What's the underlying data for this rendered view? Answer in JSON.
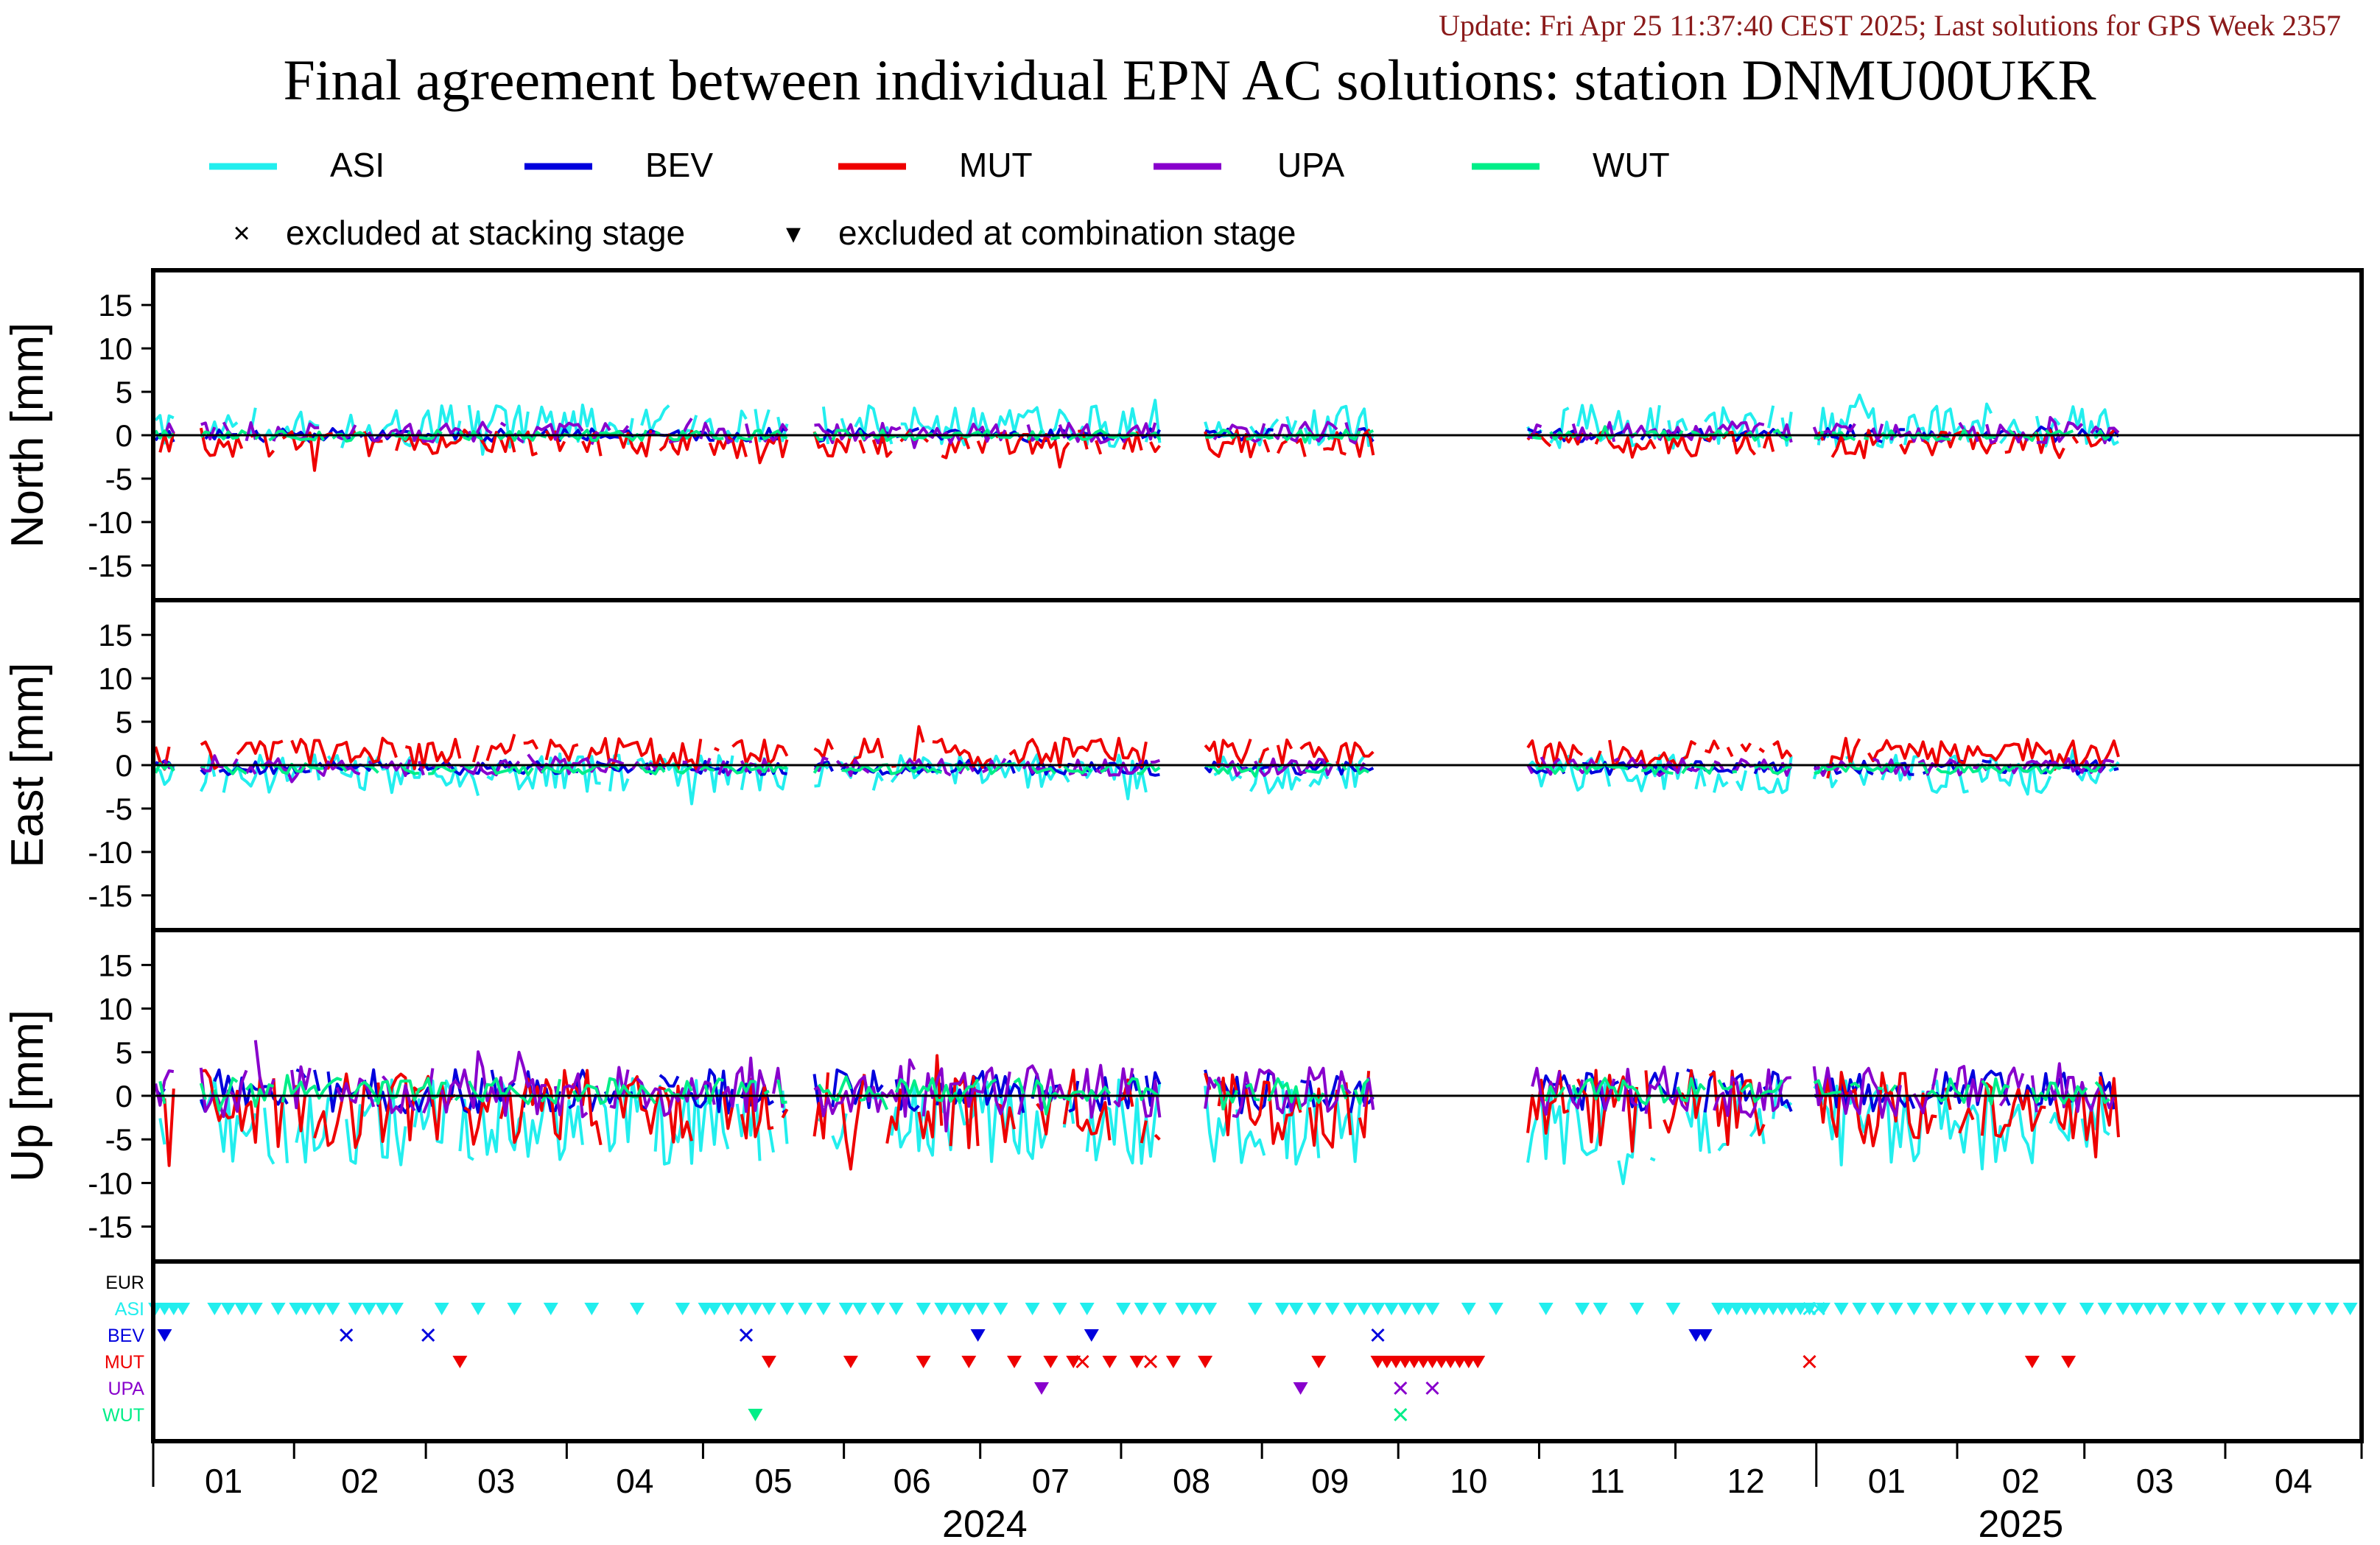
{
  "update_text": "Update: Fri Apr 25 11:37:40 CEST 2025; Last solutions for GPS Week 2357",
  "title": "Final agreement between individual EPN AC solutions: station DNMU00UKR",
  "legend": {
    "series": [
      {
        "name": "ASI",
        "color": "#22eeee"
      },
      {
        "name": "BEV",
        "color": "#0000dd"
      },
      {
        "name": "MUT",
        "color": "#ee0000"
      },
      {
        "name": "UPA",
        "color": "#8800cc"
      },
      {
        "name": "WUT",
        "color": "#00ee88"
      }
    ],
    "symbols": [
      {
        "symbol": "×",
        "label": "excluded at stacking stage"
      },
      {
        "symbol": "▾",
        "label": "excluded at combination stage"
      }
    ]
  },
  "chart_data": {
    "type": "line",
    "x_range": [
      "2024-01-01",
      "2025-04-30"
    ],
    "x_months": [
      "01",
      "02",
      "03",
      "04",
      "05",
      "06",
      "07",
      "08",
      "09",
      "10",
      "11",
      "12",
      "01",
      "02",
      "03",
      "04"
    ],
    "x_years": [
      "2024",
      "2025"
    ],
    "panels": [
      {
        "ylabel": "North [mm]",
        "ylim": [
          -19,
          19
        ],
        "yticks": [
          15,
          10,
          5,
          0,
          -5,
          -10,
          -15
        ],
        "series": [
          {
            "name": "ASI",
            "amplitude": 2.5,
            "bias": 1.0
          },
          {
            "name": "BEV",
            "amplitude": 0.8,
            "bias": 0.0
          },
          {
            "name": "MUT",
            "amplitude": 1.6,
            "bias": -1.0
          },
          {
            "name": "UPA",
            "amplitude": 1.2,
            "bias": 0.3
          },
          {
            "name": "WUT",
            "amplitude": 0.6,
            "bias": 0.0
          }
        ]
      },
      {
        "ylabel": "East [mm]",
        "ylim": [
          -19,
          19
        ],
        "yticks": [
          15,
          10,
          5,
          0,
          -5,
          -10,
          -15
        ],
        "series": [
          {
            "name": "ASI",
            "amplitude": 2.2,
            "bias": -1.0
          },
          {
            "name": "BEV",
            "amplitude": 0.8,
            "bias": -0.3
          },
          {
            "name": "MUT",
            "amplitude": 1.8,
            "bias": 1.3
          },
          {
            "name": "UPA",
            "amplitude": 1.0,
            "bias": -0.2
          },
          {
            "name": "WUT",
            "amplitude": 0.6,
            "bias": -0.4
          }
        ]
      },
      {
        "ylabel": "Up [mm]",
        "ylim": [
          -19,
          19
        ],
        "yticks": [
          15,
          10,
          5,
          0,
          -5,
          -10,
          -15
        ],
        "series": [
          {
            "name": "ASI",
            "amplitude": 5.0,
            "bias": -3.0
          },
          {
            "name": "BEV",
            "amplitude": 2.5,
            "bias": 0.5
          },
          {
            "name": "MUT",
            "amplitude": 4.5,
            "bias": -1.5
          },
          {
            "name": "UPA",
            "amplitude": 3.0,
            "bias": 0.5
          },
          {
            "name": "WUT",
            "amplitude": 1.5,
            "bias": 0.5
          }
        ]
      }
    ],
    "gap_days": [
      [
        "2024-01-06",
        "2024-01-10"
      ],
      [
        "2024-05-20",
        "2024-05-24"
      ],
      [
        "2024-08-10",
        "2024-08-18"
      ],
      [
        "2024-09-26",
        "2024-10-28"
      ],
      [
        "2024-12-27",
        "2024-12-30"
      ],
      [
        "2025-03-09",
        "2025-04-30"
      ]
    ],
    "exclusions": {
      "rows": [
        "EUR",
        "ASI",
        "BEV",
        "MUT",
        "UPA",
        "WUT"
      ],
      "marks": {
        "ASI": {
          "combination": [
            "2024-01-01",
            "2024-01-03",
            "2024-01-05",
            "2024-01-07",
            "2024-01-14",
            "2024-01-17",
            "2024-01-20",
            "2024-01-23",
            "2024-01-28",
            "2024-02-01",
            "2024-02-03",
            "2024-02-06",
            "2024-02-09",
            "2024-02-14",
            "2024-02-17",
            "2024-02-20",
            "2024-02-23",
            "2024-03-04",
            "2024-03-12",
            "2024-03-20",
            "2024-03-28",
            "2024-04-06",
            "2024-04-16",
            "2024-04-26",
            "2024-05-01",
            "2024-05-03",
            "2024-05-06",
            "2024-05-09",
            "2024-05-12",
            "2024-05-15",
            "2024-05-19",
            "2024-05-23",
            "2024-05-27",
            "2024-06-01",
            "2024-06-04",
            "2024-06-08",
            "2024-06-12",
            "2024-06-18",
            "2024-06-22",
            "2024-06-25",
            "2024-06-28",
            "2024-07-01",
            "2024-07-05",
            "2024-07-12",
            "2024-07-18",
            "2024-07-24",
            "2024-08-01",
            "2024-08-05",
            "2024-08-09",
            "2024-08-14",
            "2024-08-17",
            "2024-08-20",
            "2024-08-30",
            "2024-09-05",
            "2024-09-08",
            "2024-09-12",
            "2024-09-16",
            "2024-09-20",
            "2024-09-23",
            "2024-09-26",
            "2024-09-29",
            "2024-10-02",
            "2024-10-05",
            "2024-10-08",
            "2024-10-16",
            "2024-10-22",
            "2024-11-02",
            "2024-11-10",
            "2024-11-14",
            "2024-11-22",
            "2024-11-30",
            "2024-12-10",
            "2024-12-12",
            "2024-12-14",
            "2024-12-16",
            "2024-12-18",
            "2024-12-20",
            "2024-12-22",
            "2024-12-24",
            "2024-12-26",
            "2024-12-28",
            "2024-12-30",
            "2025-01-02",
            "2025-01-06",
            "2025-01-10",
            "2025-01-14",
            "2025-01-18",
            "2025-01-22",
            "2025-01-26",
            "2025-01-30",
            "2025-02-03",
            "2025-02-07",
            "2025-02-11",
            "2025-02-15",
            "2025-02-19",
            "2025-02-23",
            "2025-03-01",
            "2025-03-05",
            "2025-03-09",
            "2025-03-12",
            "2025-03-15",
            "2025-03-18",
            "2025-03-22",
            "2025-03-26",
            "2025-03-30",
            "2025-04-04",
            "2025-04-08",
            "2025-04-12",
            "2025-04-16",
            "2025-04-20",
            "2025-04-24",
            "2025-04-28"
          ],
          "stacking": [
            "2024-12-30",
            "2025-01-01"
          ]
        },
        "BEV": {
          "combination": [
            "2024-01-03",
            "2024-06-30",
            "2024-07-25",
            "2024-12-05",
            "2024-12-07"
          ],
          "stacking": [
            "2024-02-12",
            "2024-03-01",
            "2024-05-10",
            "2024-09-26"
          ]
        },
        "MUT": {
          "combination": [
            "2024-03-08",
            "2024-05-15",
            "2024-06-02",
            "2024-06-18",
            "2024-06-28",
            "2024-07-08",
            "2024-07-16",
            "2024-07-21",
            "2024-07-29",
            "2024-08-04",
            "2024-08-12",
            "2024-08-19",
            "2024-09-13",
            "2024-09-26",
            "2024-09-28",
            "2024-09-30",
            "2024-10-02",
            "2024-10-04",
            "2024-10-06",
            "2024-10-08",
            "2024-10-10",
            "2024-10-12",
            "2024-10-14",
            "2024-10-16",
            "2024-10-18",
            "2025-02-17",
            "2025-02-25"
          ],
          "stacking": [
            "2024-07-23",
            "2024-08-07",
            "2024-12-30"
          ]
        },
        "UPA": {
          "combination": [
            "2024-07-14",
            "2024-09-09"
          ],
          "stacking": [
            "2024-10-01",
            "2024-10-08"
          ]
        },
        "WUT": {
          "combination": [
            "2024-05-12"
          ],
          "stacking": [
            "2024-10-01"
          ]
        }
      }
    }
  }
}
